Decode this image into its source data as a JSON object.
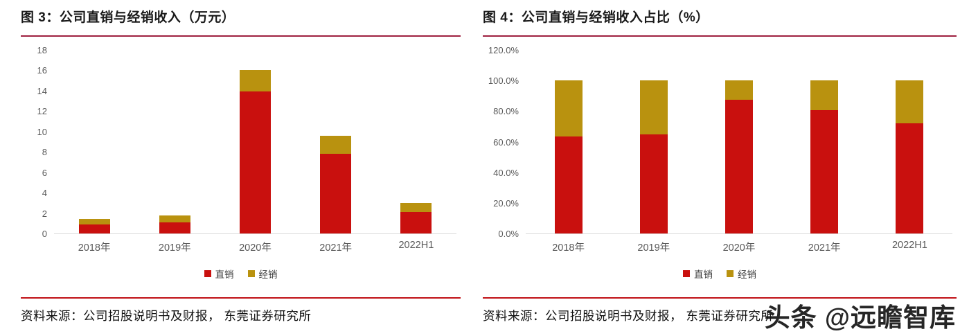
{
  "page": {
    "watermark": "头条 @远瞻智库"
  },
  "colors": {
    "accent_rule_top": "#9E1F3F",
    "accent_rule_bottom": "#C01015",
    "axis_line": "#D9D9D9",
    "tick_text": "#595959",
    "direct_sales_red": "#C9100E",
    "distribution_gold": "#B9920F"
  },
  "chart_data": [
    {
      "type": "bar",
      "stacked": true,
      "title": "图 3：公司直销与经销收入（万元）",
      "xlabel": "",
      "ylabel": "",
      "grid": false,
      "legend_position": "bottom",
      "categories": [
        "2018年",
        "2019年",
        "2020年",
        "2021年",
        "2022H1"
      ],
      "series": [
        {
          "name": "直销",
          "color": "#C9100E",
          "values": [
            0.9,
            1.1,
            13.9,
            7.8,
            2.1
          ]
        },
        {
          "name": "经销",
          "color": "#B9920F",
          "values": [
            0.5,
            0.7,
            2.1,
            1.8,
            0.9
          ]
        }
      ],
      "ylim": [
        0,
        18
      ],
      "y_ticks": [
        {
          "label": "18",
          "value": 18
        },
        {
          "label": "16",
          "value": 16
        },
        {
          "label": "14",
          "value": 14
        },
        {
          "label": "12",
          "value": 12
        },
        {
          "label": "10",
          "value": 10
        },
        {
          "label": "8",
          "value": 8
        },
        {
          "label": "6",
          "value": 6
        },
        {
          "label": "4",
          "value": 4
        },
        {
          "label": "2",
          "value": 2
        },
        {
          "label": "0",
          "value": 0
        }
      ],
      "source": "资料来源：公司招股说明书及财报， 东莞证券研究所"
    },
    {
      "type": "bar",
      "stacked": true,
      "title": "图 4：公司直销与经销收入占比（%）",
      "xlabel": "",
      "ylabel": "",
      "grid": false,
      "legend_position": "bottom",
      "categories": [
        "2018年",
        "2019年",
        "2020年",
        "2021年",
        "2022H1"
      ],
      "series": [
        {
          "name": "直销",
          "color": "#C9100E",
          "values": [
            63.3,
            64.6,
            87.2,
            80.6,
            71.9
          ]
        },
        {
          "name": "经销",
          "color": "#B9920F",
          "values": [
            36.7,
            35.4,
            12.8,
            19.4,
            28.1
          ]
        }
      ],
      "ylim": [
        0,
        120
      ],
      "y_ticks": [
        {
          "label": "120.0%",
          "value": 120
        },
        {
          "label": "100.0%",
          "value": 100
        },
        {
          "label": "80.0%",
          "value": 80
        },
        {
          "label": "60.0%",
          "value": 60
        },
        {
          "label": "40.0%",
          "value": 40
        },
        {
          "label": "20.0%",
          "value": 20
        },
        {
          "label": "0.0%",
          "value": 0
        }
      ],
      "source": "资料来源：公司招股说明书及财报， 东莞证券研究所"
    }
  ]
}
